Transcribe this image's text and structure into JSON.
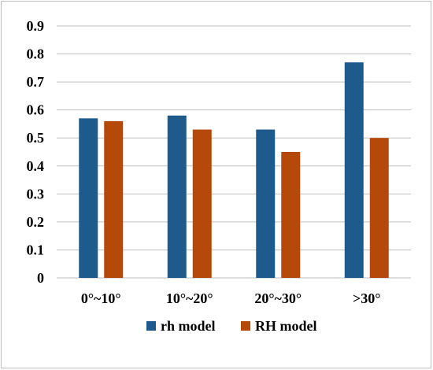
{
  "chart_data": {
    "type": "bar",
    "categories": [
      "0°~10°",
      "10°~20°",
      "20°~30°",
      ">30°"
    ],
    "series": [
      {
        "name": "rh model",
        "values": [
          0.57,
          0.58,
          0.53,
          0.77
        ],
        "color": "#1f5a8c"
      },
      {
        "name": "RH model",
        "values": [
          0.56,
          0.53,
          0.45,
          0.5
        ],
        "color": "#b5490a"
      }
    ],
    "title": "",
    "xlabel": "",
    "ylabel": "",
    "ylim": [
      0,
      0.9
    ],
    "yticks": [
      "0",
      "0.1",
      "0.2",
      "0.3",
      "0.4",
      "0.5",
      "0.6",
      "0.7",
      "0.8",
      "0.9"
    ],
    "grid": true,
    "gridline_color": "#bfbfbf",
    "legend_position": "bottom"
  }
}
